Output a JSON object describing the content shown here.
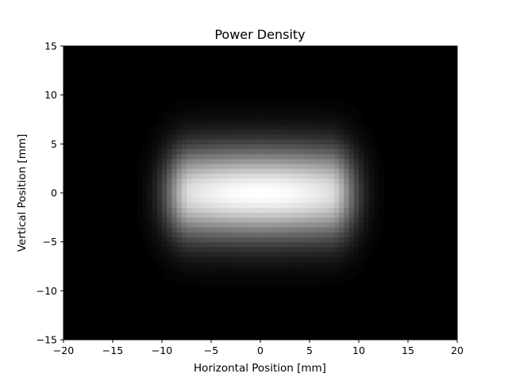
{
  "chart_data": {
    "type": "heatmap",
    "title": "Power Density",
    "xlabel": "Horizontal Position [mm]",
    "ylabel": "Vertical Position [mm]",
    "xlim": [
      -20,
      20
    ],
    "ylim": [
      -15,
      15
    ],
    "x_ticks": [
      -20,
      -15,
      -10,
      -5,
      0,
      5,
      10,
      15,
      20
    ],
    "y_ticks": [
      -15,
      -10,
      -5,
      0,
      5,
      10,
      15
    ],
    "x_tick_labels": [
      "−20",
      "−15",
      "−10",
      "−5",
      "0",
      "5",
      "10",
      "15",
      "20"
    ],
    "y_tick_labels": [
      "−15",
      "−10",
      "−5",
      "0",
      "5",
      "10",
      "15"
    ],
    "colormap": "gray",
    "grid": false,
    "background_color": "#000000",
    "peak": {
      "x": 0,
      "y": 0
    },
    "plateau_half_width_x": 7,
    "edge_sigma_x": 2.0,
    "sigma_y": 3.2,
    "resolution": {
      "nx": 80,
      "ny": 60
    }
  }
}
